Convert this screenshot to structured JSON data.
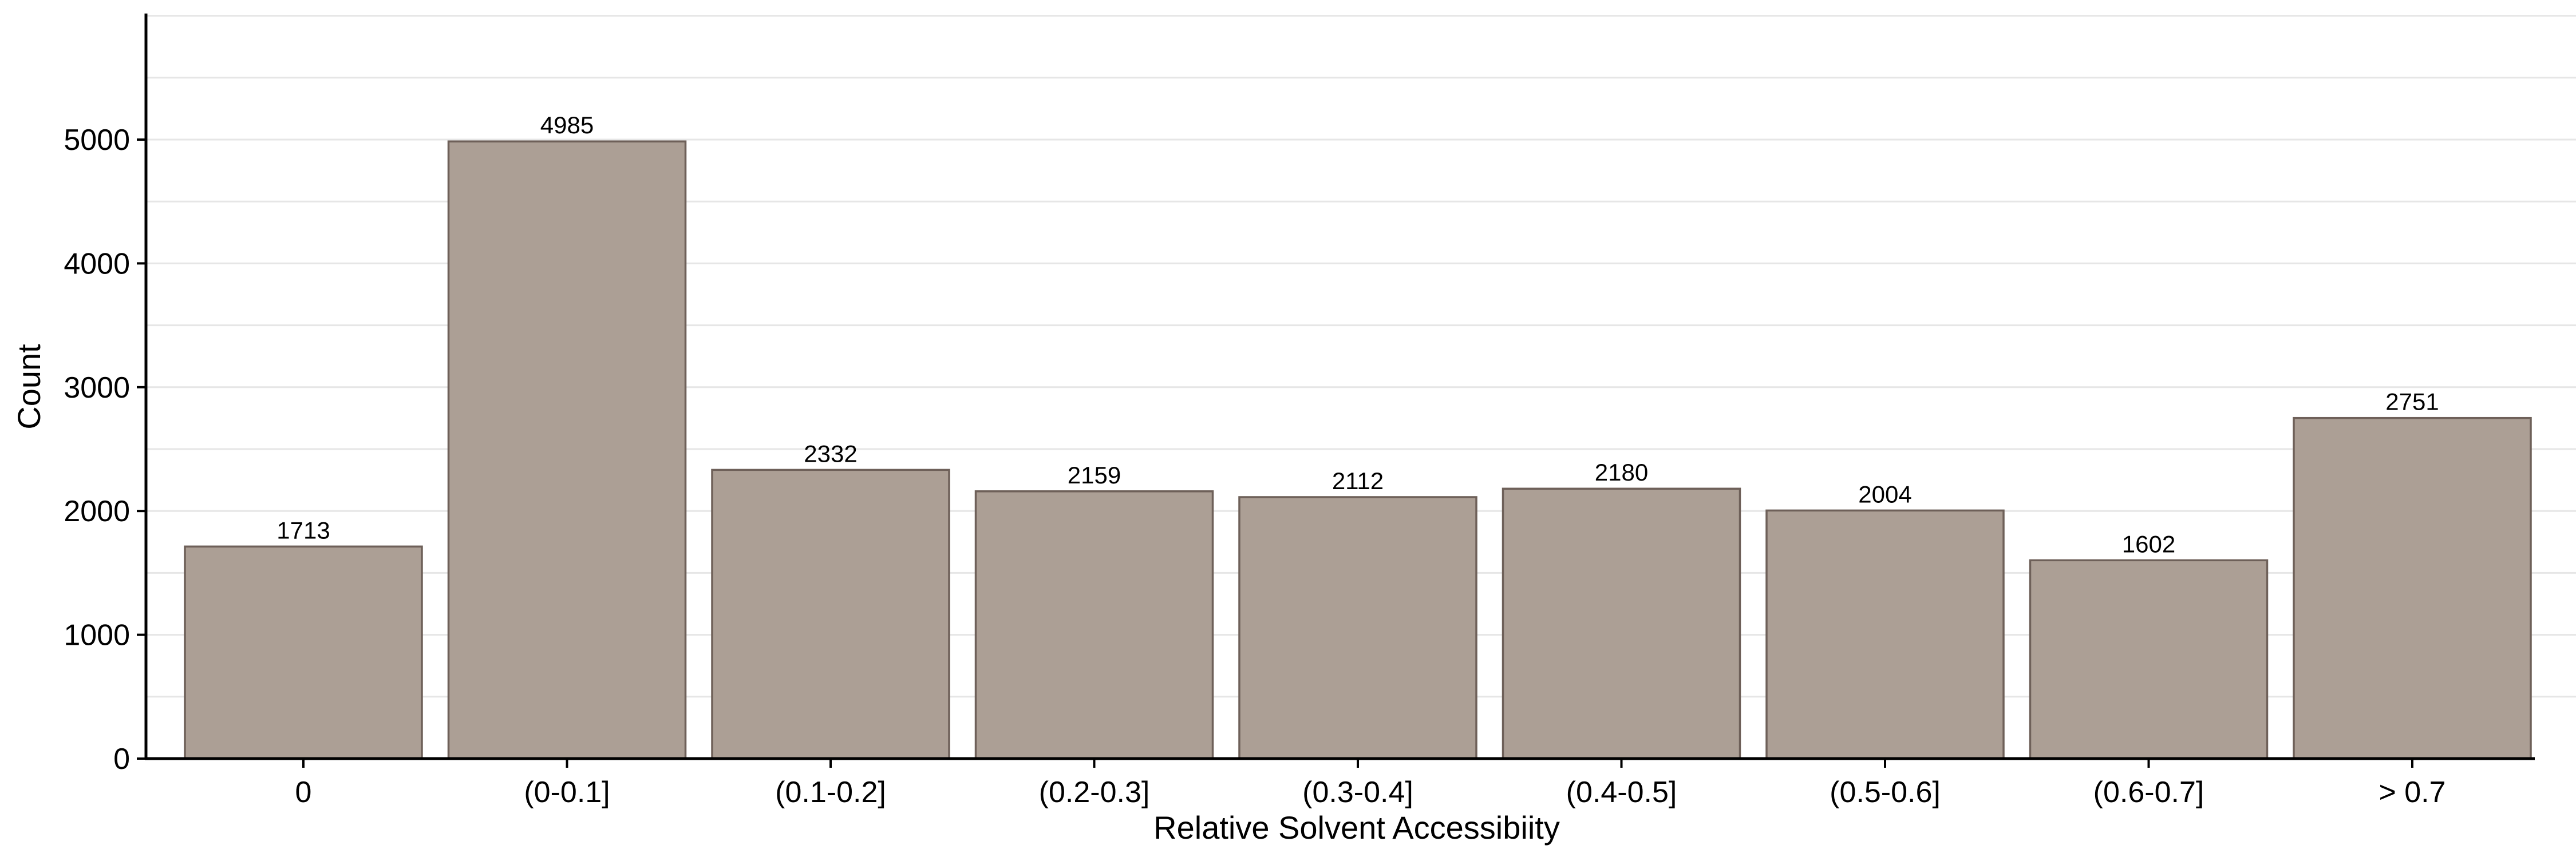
{
  "chart_data": {
    "type": "bar",
    "categories": [
      "0",
      "(0-0.1]",
      "(0.1-0.2]",
      "(0.2-0.3]",
      "(0.3-0.4]",
      "(0.4-0.5]",
      "(0.5-0.6]",
      "(0.6-0.7]",
      "> 0.7"
    ],
    "values": [
      1713,
      4985,
      2332,
      2159,
      2112,
      2180,
      2004,
      1602,
      2751
    ],
    "data_labels": [
      "1713",
      "4985",
      "2332",
      "2159",
      "2112",
      "2180",
      "2004",
      "1602",
      "2751"
    ],
    "title": "",
    "xlabel": "Relative Solvent Accessibiity",
    "ylabel": "Count",
    "ylim": [
      0,
      6000
    ],
    "yticks": [
      0,
      1000,
      2000,
      3000,
      4000,
      5000
    ],
    "ytick_labels": [
      "0",
      "1000",
      "2000",
      "3000",
      "4000",
      "5000"
    ],
    "minor_gridlines": [
      500,
      1500,
      2500,
      3500,
      4500,
      5500
    ],
    "grid": "horizontal",
    "legend": "none",
    "bar_fill": "#ac9f95",
    "bar_stroke": "#6e6059"
  }
}
